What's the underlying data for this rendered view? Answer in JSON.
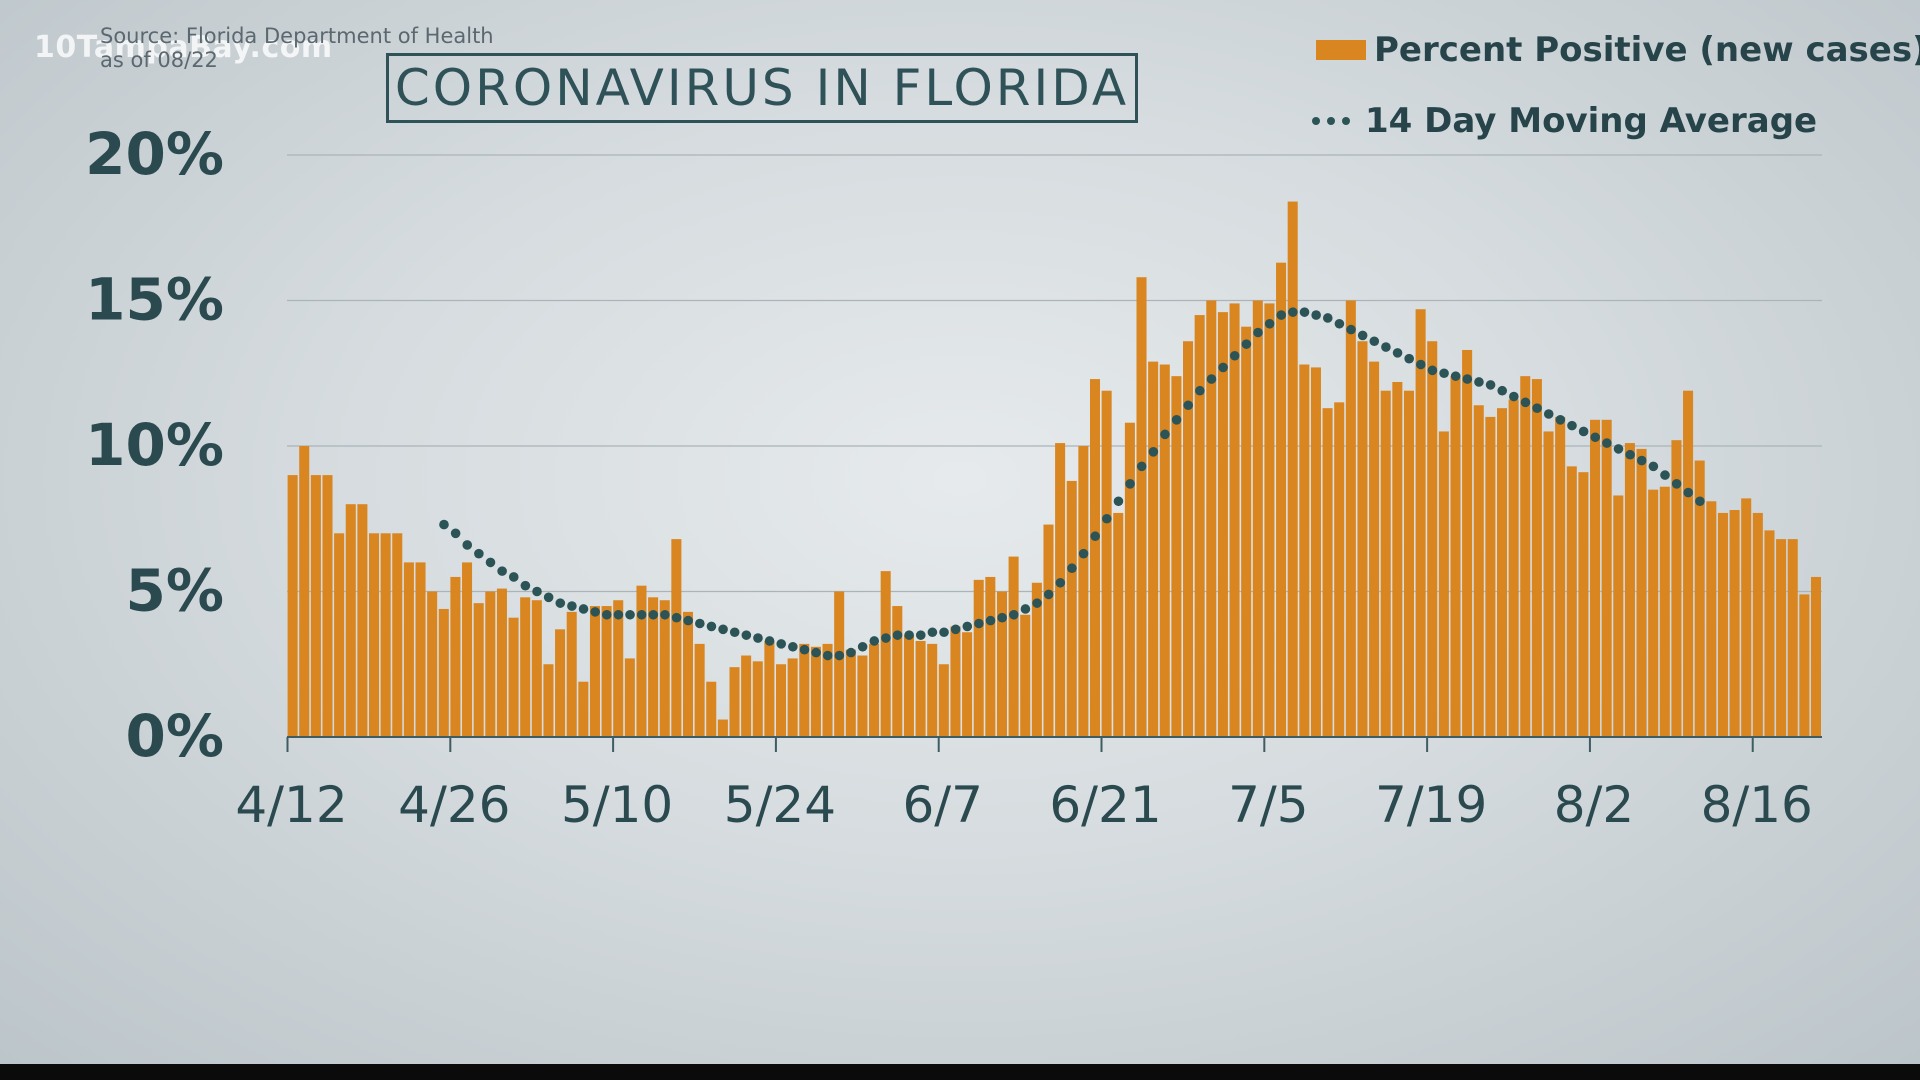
{
  "watermark": "10TampaBay.com",
  "source": {
    "line1": "Source: Florida Department of Health",
    "line2": "as of 08/22"
  },
  "title": "CORONAVIRUS IN FLORIDA",
  "legend": {
    "bars_label": "Percent Positive (new cases)",
    "line_label": "14 Day Moving Average"
  },
  "colors": {
    "bar": "#d98520",
    "moving_average": "#2c5457",
    "axis_text": "#2b4a50",
    "title": "#2f5258",
    "gridline": "#aab4b9"
  },
  "chart_data": {
    "type": "bar",
    "start_date": "4/12",
    "end_date": "8/22",
    "xtick_labels": [
      "4/12",
      "4/26",
      "5/10",
      "5/24",
      "6/7",
      "6/21",
      "7/5",
      "7/19",
      "8/2",
      "8/16"
    ],
    "yticks": [
      0,
      5,
      10,
      15,
      20
    ],
    "ytick_labels": [
      "0%",
      "5%",
      "10%",
      "15%",
      "20%"
    ],
    "ylim": [
      0,
      20
    ],
    "grid": true,
    "legend_position": "top-right",
    "series": [
      {
        "name": "Percent Positive (new cases)",
        "type": "bar",
        "values": [
          9.0,
          10.0,
          9.0,
          9.0,
          7.0,
          8.0,
          8.0,
          7.0,
          7.0,
          7.0,
          6.0,
          6.0,
          5.0,
          4.4,
          5.5,
          6.0,
          4.6,
          5.0,
          5.1,
          4.1,
          4.8,
          4.7,
          2.5,
          3.7,
          4.3,
          1.9,
          4.5,
          4.5,
          4.7,
          2.7,
          5.2,
          4.8,
          4.7,
          6.8,
          4.3,
          3.2,
          1.9,
          0.6,
          2.4,
          2.8,
          2.6,
          3.3,
          2.5,
          2.7,
          3.2,
          3.1,
          3.2,
          5.0,
          3.0,
          2.8,
          3.2,
          5.7,
          4.5,
          3.5,
          3.3,
          3.2,
          2.5,
          3.8,
          3.6,
          5.4,
          5.5,
          5.0,
          6.2,
          4.2,
          5.3,
          7.3,
          10.1,
          8.8,
          10.0,
          12.3,
          11.9,
          7.7,
          10.8,
          15.8,
          12.9,
          12.8,
          12.4,
          13.6,
          14.5,
          15.0,
          14.6,
          14.9,
          14.1,
          15.0,
          14.9,
          16.3,
          18.4,
          12.8,
          12.7,
          11.3,
          11.5,
          15.0,
          13.6,
          12.9,
          11.9,
          12.2,
          11.9,
          14.7,
          13.6,
          10.5,
          12.4,
          13.3,
          11.4,
          11.0,
          11.3,
          11.6,
          12.4,
          12.3,
          10.5,
          11.0,
          9.3,
          9.1,
          10.9,
          10.9,
          8.3,
          10.1,
          9.9,
          8.5,
          8.6,
          10.2,
          11.9,
          9.5,
          8.1,
          7.7,
          7.8,
          8.2,
          7.7,
          7.1,
          6.8,
          6.8,
          4.9,
          5.5
        ]
      },
      {
        "name": "14 Day Moving Average",
        "type": "line-dotted",
        "start_index": 13,
        "values": [
          7.3,
          7.0,
          6.6,
          6.3,
          6.0,
          5.7,
          5.5,
          5.2,
          5.0,
          4.8,
          4.6,
          4.5,
          4.4,
          4.3,
          4.2,
          4.2,
          4.2,
          4.2,
          4.2,
          4.2,
          4.1,
          4.0,
          3.9,
          3.8,
          3.7,
          3.6,
          3.5,
          3.4,
          3.3,
          3.2,
          3.1,
          3.0,
          2.9,
          2.8,
          2.8,
          2.9,
          3.1,
          3.3,
          3.4,
          3.5,
          3.5,
          3.5,
          3.6,
          3.6,
          3.7,
          3.8,
          3.9,
          4.0,
          4.1,
          4.2,
          4.4,
          4.6,
          4.9,
          5.3,
          5.8,
          6.3,
          6.9,
          7.5,
          8.1,
          8.7,
          9.3,
          9.8,
          10.4,
          10.9,
          11.4,
          11.9,
          12.3,
          12.7,
          13.1,
          13.5,
          13.9,
          14.2,
          14.5,
          14.6,
          14.6,
          14.5,
          14.4,
          14.2,
          14.0,
          13.8,
          13.6,
          13.4,
          13.2,
          13.0,
          12.8,
          12.6,
          12.5,
          12.4,
          12.3,
          12.2,
          12.1,
          11.9,
          11.7,
          11.5,
          11.3,
          11.1,
          10.9,
          10.7,
          10.5,
          10.3,
          10.1,
          9.9,
          9.7,
          9.5,
          9.3,
          9.0,
          8.7,
          8.4,
          8.1
        ]
      }
    ]
  }
}
